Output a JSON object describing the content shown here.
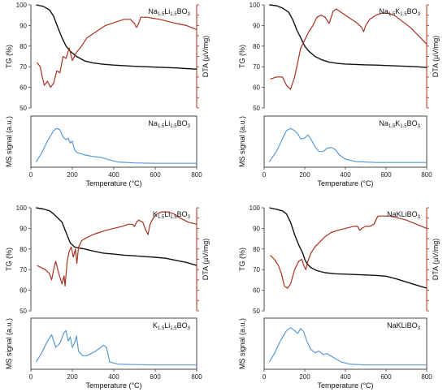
{
  "colors": {
    "tg": "#111111",
    "dta": "#a83222",
    "ms": "#5b9bd5",
    "frame": "#555555"
  },
  "chart_data": [
    {
      "type": "line",
      "panel": "top-left",
      "title": {
        "base": "Na",
        "s1": "1.5",
        "mid": "Li",
        "s2": "1.5",
        "end": "BO",
        "s3": "3"
      },
      "xlim": [
        0,
        800
      ],
      "ylim": [
        50,
        100
      ],
      "ylabel": "TG (%)",
      "y2label": "DTA (µV/mg)",
      "yticks": [
        "50",
        "60",
        "70",
        "80",
        "90",
        "100"
      ],
      "series": [
        {
          "key": "tg",
          "x": [
            25,
            60,
            90,
            110,
            130,
            150,
            170,
            190,
            220,
            260,
            300,
            350,
            400,
            450,
            500,
            550,
            600,
            650,
            700,
            750,
            800
          ],
          "y": [
            100,
            99.3,
            97.5,
            94.5,
            89,
            84,
            80,
            77.5,
            75,
            72.8,
            71.8,
            71.2,
            70.8,
            70.5,
            70.2,
            70,
            69.8,
            69.6,
            69.4,
            69.1,
            68.8
          ]
        },
        {
          "key": "dta",
          "x": [
            30,
            45,
            55,
            65,
            80,
            95,
            110,
            125,
            140,
            155,
            170,
            185,
            200,
            220,
            245,
            270,
            300,
            330,
            360,
            390,
            420,
            450,
            480,
            500,
            510,
            520,
            530,
            545,
            560,
            590,
            620,
            660,
            700,
            750,
            800
          ],
          "y": [
            72,
            70,
            65,
            61,
            63,
            60,
            62,
            68,
            67,
            75,
            74,
            79,
            73,
            77,
            80,
            84,
            86,
            88,
            90,
            91,
            92,
            93,
            93,
            91,
            89,
            91,
            94,
            94,
            94,
            93.5,
            93,
            92,
            91,
            90,
            88
          ]
        }
      ]
    },
    {
      "type": "line",
      "panel": "top-right",
      "title": {
        "base": "Na",
        "s1": "1.5",
        "mid": "K",
        "s2": "1.5",
        "end": "BO",
        "s3": "3"
      },
      "xlim": [
        0,
        800
      ],
      "ylim": [
        50,
        100
      ],
      "ylabel": "TG (%)",
      "y2label": "DTA (µV/mg)",
      "yticks": [
        "50",
        "60",
        "70",
        "80",
        "90",
        "100"
      ],
      "series": [
        {
          "key": "tg",
          "x": [
            25,
            60,
            90,
            120,
            140,
            160,
            180,
            200,
            220,
            250,
            280,
            320,
            360,
            400,
            450,
            500,
            550,
            600,
            650,
            700,
            750,
            800
          ],
          "y": [
            100,
            99.6,
            98.5,
            96.5,
            93,
            88,
            84,
            80,
            77.5,
            75,
            73.5,
            72.2,
            71.6,
            71.3,
            71.1,
            70.9,
            70.8,
            70.6,
            70.4,
            70.2,
            70,
            69.6
          ]
        },
        {
          "key": "dta",
          "x": [
            30,
            60,
            90,
            110,
            130,
            150,
            165,
            180,
            200,
            220,
            240,
            260,
            280,
            300,
            320,
            330,
            340,
            355,
            370,
            400,
            430,
            460,
            480,
            490,
            500,
            520,
            550,
            580,
            610,
            640,
            680,
            720,
            760,
            800
          ],
          "y": [
            64,
            65,
            65,
            61,
            59,
            65,
            72,
            79,
            83,
            87,
            90,
            94,
            95,
            94,
            91,
            94,
            97,
            98,
            97,
            95,
            93,
            91,
            89,
            87,
            90,
            93,
            95,
            96,
            96,
            95,
            92,
            89,
            85,
            81
          ]
        }
      ]
    },
    {
      "type": "line",
      "panel": "bottom-left",
      "title": {
        "base": "K",
        "s1": "1.5",
        "mid": "Li",
        "s2": "1.5",
        "end": "BO",
        "s3": "3"
      },
      "xlim": [
        0,
        800
      ],
      "ylim": [
        50,
        100
      ],
      "ylabel": "TG (%)",
      "y2label": "DTA (µV/mg)",
      "yticks": [
        "50",
        "60",
        "70",
        "80",
        "90",
        "100"
      ],
      "series": [
        {
          "key": "tg",
          "x": [
            25,
            60,
            90,
            110,
            130,
            150,
            170,
            190,
            210,
            230,
            260,
            300,
            350,
            400,
            450,
            500,
            550,
            600,
            650,
            700,
            750,
            800
          ],
          "y": [
            100,
            99.4,
            98.5,
            97,
            95,
            93,
            88,
            83,
            81,
            80.5,
            80,
            79,
            78,
            77.5,
            77,
            76.7,
            76.3,
            76,
            75.5,
            74.5,
            73.5,
            72
          ]
        },
        {
          "key": "dta",
          "x": [
            30,
            50,
            70,
            90,
            100,
            110,
            120,
            135,
            150,
            160,
            165,
            175,
            185,
            195,
            205,
            215,
            222,
            230,
            245,
            260,
            280,
            300,
            330,
            360,
            400,
            440,
            470,
            490,
            500,
            510,
            520,
            540,
            555,
            565,
            575,
            590,
            610,
            630,
            660,
            690,
            720,
            760,
            800
          ],
          "y": [
            72,
            71,
            70,
            68,
            65,
            70,
            74,
            68,
            63,
            67,
            62,
            74,
            79,
            81,
            76,
            80,
            73,
            81,
            84,
            85,
            86,
            87,
            88,
            89,
            90,
            91,
            92,
            92,
            91,
            93,
            94,
            93,
            89,
            87,
            92,
            95,
            97,
            98,
            98,
            97,
            95,
            93,
            92
          ]
        }
      ]
    },
    {
      "type": "line",
      "panel": "bottom-right",
      "title": {
        "base": "NaKLiBO",
        "s1": "",
        "mid": "",
        "s2": "",
        "end": "",
        "s3": "3"
      },
      "xlim": [
        0,
        800
      ],
      "ylim": [
        50,
        100
      ],
      "ylabel": "TG (%)",
      "y2label": "DTA (µV/mg)",
      "yticks": [
        "50",
        "60",
        "70",
        "80",
        "90",
        "100"
      ],
      "series": [
        {
          "key": "tg",
          "x": [
            25,
            60,
            90,
            110,
            130,
            150,
            170,
            190,
            200,
            210,
            230,
            260,
            300,
            350,
            400,
            450,
            500,
            550,
            600,
            650,
            700,
            750,
            800
          ],
          "y": [
            100,
            99.3,
            98.5,
            97,
            93,
            87,
            82,
            78,
            75,
            73,
            71,
            69.5,
            68.5,
            68,
            67.8,
            67.6,
            67.4,
            67.2,
            66.8,
            65.5,
            64,
            62.5,
            61
          ]
        },
        {
          "key": "dta",
          "x": [
            30,
            50,
            70,
            85,
            100,
            115,
            130,
            150,
            170,
            185,
            195,
            205,
            215,
            230,
            250,
            270,
            300,
            330,
            360,
            400,
            440,
            460,
            470,
            480,
            500,
            520,
            540,
            560,
            580,
            620,
            660,
            700,
            750,
            800
          ],
          "y": [
            77,
            75,
            72,
            68,
            62,
            61,
            63,
            70,
            74,
            75,
            72,
            70,
            74,
            78,
            81,
            83,
            86,
            88,
            89,
            90,
            91,
            91,
            89,
            90,
            91,
            91,
            92,
            96,
            96,
            96,
            95,
            94,
            92,
            90
          ]
        }
      ]
    },
    {
      "type": "line",
      "panel": "ms-top-left",
      "title": {
        "base": "Na",
        "s1": "1.5",
        "mid": "Li",
        "s2": "1.5",
        "end": "BO",
        "s3": "3"
      },
      "xlim": [
        0,
        800
      ],
      "ylabel": "MS signal (a.u.)",
      "xlabel": "Temperature (°C)",
      "xticks": [
        "0",
        "200",
        "400",
        "600",
        "800"
      ],
      "series": [
        {
          "key": "ms",
          "x": [
            25,
            50,
            80,
            110,
            125,
            140,
            155,
            170,
            180,
            190,
            200,
            210,
            220,
            240,
            260,
            300,
            340,
            380,
            420,
            500,
            600,
            700,
            800
          ],
          "y": [
            0.05,
            0.25,
            0.55,
            0.8,
            0.85,
            0.82,
            0.65,
            0.58,
            0.62,
            0.5,
            0.55,
            0.35,
            0.28,
            0.25,
            0.22,
            0.18,
            0.16,
            0.1,
            0.05,
            0.03,
            0.02,
            0.02,
            0.02
          ]
        }
      ]
    },
    {
      "type": "line",
      "panel": "ms-top-right",
      "title": {
        "base": "Na",
        "s1": "1.5",
        "mid": "K",
        "s2": "1.5",
        "end": "BO",
        "s3": "3"
      },
      "xlim": [
        0,
        800
      ],
      "ylabel": "MS signal (a.u.)",
      "xlabel": "Temperature (°C)",
      "xticks": [
        "0",
        "200",
        "400",
        "600",
        "800"
      ],
      "series": [
        {
          "key": "ms",
          "x": [
            25,
            60,
            90,
            110,
            130,
            150,
            165,
            180,
            200,
            215,
            230,
            250,
            270,
            290,
            310,
            330,
            350,
            370,
            400,
            450,
            550,
            650,
            800
          ],
          "y": [
            0.05,
            0.3,
            0.6,
            0.8,
            0.85,
            0.8,
            0.72,
            0.6,
            0.62,
            0.7,
            0.6,
            0.42,
            0.3,
            0.3,
            0.38,
            0.4,
            0.35,
            0.22,
            0.12,
            0.06,
            0.04,
            0.04,
            0.04
          ]
        }
      ]
    },
    {
      "type": "line",
      "panel": "ms-bottom-left",
      "title": {
        "base": "K",
        "s1": "1.5",
        "mid": "Li",
        "s2": "1.5",
        "end": "BO",
        "s3": "3"
      },
      "xlim": [
        0,
        800
      ],
      "ylabel": "MS signal (a.u.)",
      "xlabel": "Temperature (°C)",
      "xticks": [
        "0",
        "200",
        "400",
        "600",
        "800"
      ],
      "series": [
        {
          "key": "ms",
          "x": [
            25,
            50,
            75,
            100,
            120,
            140,
            160,
            170,
            180,
            190,
            200,
            210,
            220,
            230,
            250,
            270,
            290,
            310,
            330,
            350,
            365,
            380,
            420,
            500,
            600,
            800
          ],
          "y": [
            0.1,
            0.3,
            0.55,
            0.75,
            0.45,
            0.55,
            0.8,
            0.85,
            0.6,
            0.7,
            0.45,
            0.55,
            0.72,
            0.35,
            0.25,
            0.25,
            0.3,
            0.35,
            0.42,
            0.5,
            0.45,
            0.1,
            0.05,
            0.04,
            0.03,
            0.03
          ]
        }
      ]
    },
    {
      "type": "line",
      "panel": "ms-bottom-right",
      "title": {
        "base": "NaKLiBO",
        "s1": "",
        "mid": "",
        "s2": "",
        "end": "",
        "s3": "3"
      },
      "xlim": [
        0,
        800
      ],
      "ylabel": "MS signal (a.u.)",
      "xlabel": "Temperature (°C)",
      "xticks": [
        "0",
        "200",
        "400",
        "600",
        "800"
      ],
      "series": [
        {
          "key": "ms",
          "x": [
            25,
            50,
            80,
            110,
            130,
            150,
            165,
            180,
            195,
            210,
            230,
            250,
            270,
            290,
            310,
            330,
            350,
            380,
            420,
            500,
            600,
            800
          ],
          "y": [
            0.1,
            0.3,
            0.6,
            0.85,
            0.92,
            0.85,
            0.78,
            0.9,
            0.82,
            0.6,
            0.4,
            0.32,
            0.36,
            0.28,
            0.3,
            0.24,
            0.18,
            0.1,
            0.05,
            0.03,
            0.03,
            0.03
          ]
        }
      ]
    }
  ]
}
